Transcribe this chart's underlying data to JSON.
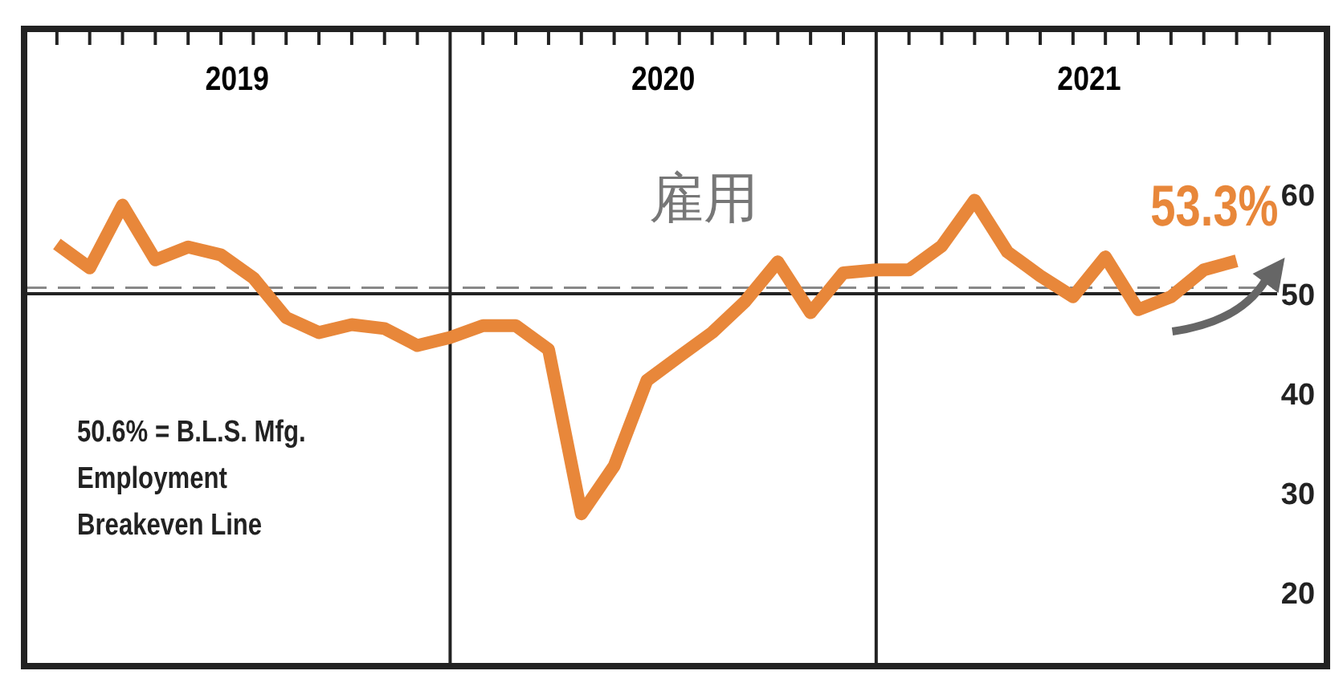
{
  "chart_data": {
    "type": "line",
    "title": "雇用",
    "x": [
      2018.577,
      2018.654,
      2018.731,
      2018.808,
      2018.885,
      2018.962,
      2019.038,
      2019.115,
      2019.192,
      2019.269,
      2019.346,
      2019.423,
      2019.5,
      2019.577,
      2019.654,
      2019.731,
      2019.808,
      2019.885,
      2019.962,
      2020.038,
      2020.115,
      2020.192,
      2020.269,
      2020.346,
      2020.423,
      2020.5,
      2020.577,
      2020.654,
      2020.731,
      2020.808,
      2020.885,
      2020.962,
      2021.038,
      2021.115,
      2021.192,
      2021.269,
      2021.346
    ],
    "series": [
      {
        "color": "#e8873a",
        "values": [
          55.0,
          52.6,
          58.9,
          53.4,
          54.7,
          53.9,
          51.6,
          47.6,
          46.1,
          46.9,
          46.5,
          44.8,
          45.6,
          46.8,
          46.8,
          44.4,
          27.9,
          32.7,
          41.3,
          43.7,
          46.1,
          49.2,
          53.2,
          48.1,
          52.1,
          52.4,
          52.4,
          54.8,
          59.4,
          54.2,
          51.8,
          49.7,
          53.7,
          48.4,
          49.7,
          52.4,
          53.3
        ]
      }
    ],
    "xlim": [
      2018.5,
      2021.558
    ],
    "xticks": [
      {
        "value": 2018.577,
        "label": null
      },
      {
        "value": 2018.654,
        "label": null
      },
      {
        "value": 2018.731,
        "label": null
      },
      {
        "value": 2018.808,
        "label": null
      },
      {
        "value": 2018.885,
        "label": null
      },
      {
        "value": 2018.962,
        "label": null
      },
      {
        "value": 2019.038,
        "label": null
      },
      {
        "value": 2019.115,
        "label": null
      },
      {
        "value": 2019.192,
        "label": null
      },
      {
        "value": 2019.269,
        "label": null
      },
      {
        "value": 2019.346,
        "label": null
      },
      {
        "value": 2019.423,
        "label": null
      },
      {
        "value": 2019.577,
        "label": null
      },
      {
        "value": 2019.654,
        "label": null
      },
      {
        "value": 2019.731,
        "label": null
      },
      {
        "value": 2019.808,
        "label": null
      },
      {
        "value": 2019.885,
        "label": null
      },
      {
        "value": 2019.962,
        "label": null
      },
      {
        "value": 2020.038,
        "label": null
      },
      {
        "value": 2020.115,
        "label": null
      },
      {
        "value": 2020.192,
        "label": null
      },
      {
        "value": 2020.269,
        "label": null
      },
      {
        "value": 2020.346,
        "label": null
      },
      {
        "value": 2020.423,
        "label": null
      },
      {
        "value": 2020.577,
        "label": null
      },
      {
        "value": 2020.654,
        "label": null
      },
      {
        "value": 2020.731,
        "label": null
      },
      {
        "value": 2020.808,
        "label": null
      },
      {
        "value": 2020.885,
        "label": null
      },
      {
        "value": 2020.962,
        "label": null
      },
      {
        "value": 2021.038,
        "label": null
      },
      {
        "value": 2021.115,
        "label": null
      },
      {
        "value": 2021.192,
        "label": null
      },
      {
        "value": 2021.269,
        "label": null
      },
      {
        "value": 2021.346,
        "label": null
      },
      {
        "value": 2021.423,
        "label": null
      },
      2019,
      2020,
      2021
    ],
    "ylim": [
      12.6,
      76.6
    ],
    "yticks": [
      20,
      30,
      40,
      50,
      60
    ],
    "ref_lines": [
      {
        "axis": "y",
        "value": 50,
        "color": "#222222",
        "line_style": "solid"
      },
      {
        "axis": "y",
        "value": 50.6,
        "color": "#888888",
        "line_style": "dashed"
      },
      {
        "axis": "x",
        "value": 2019.5,
        "color": "#222222",
        "line_style": "solid"
      },
      {
        "axis": "x",
        "value": 2020.5,
        "color": "#222222",
        "line_style": "solid"
      }
    ],
    "annotations": [
      {
        "text": "53.3%",
        "x": 2021.346,
        "y": 53.3
      },
      "50.6% = B.L.S. Mfg.\nEmployment\nBreakeven Line"
    ],
    "line_style": "solid",
    "marker": "none",
    "grid": false
  }
}
